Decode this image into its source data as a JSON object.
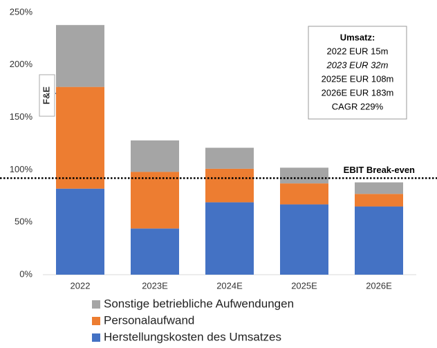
{
  "chart_data": {
    "type": "stacked_bar",
    "categories": [
      "2022",
      "2023E",
      "2024E",
      "2025E",
      "2026E"
    ],
    "series": [
      {
        "name": "Herstellungskosten des Umsatzes",
        "color": "#4472c4",
        "values": [
          82,
          44,
          69,
          67,
          65
        ]
      },
      {
        "name": "Personalaufwand",
        "color": "#ed7d31",
        "values": [
          97,
          54,
          32,
          20,
          12
        ]
      },
      {
        "name": "Sonstige betriebliche Aufwendungen",
        "color": "#a5a5a5",
        "values": [
          59,
          30,
          20,
          15,
          11
        ]
      }
    ],
    "ylim": [
      0,
      250
    ],
    "yticks": [
      {
        "value": 0,
        "label": "0%"
      },
      {
        "value": 50,
        "label": "50%"
      },
      {
        "value": 100,
        "label": "100%"
      },
      {
        "value": 150,
        "label": "150%"
      },
      {
        "value": 200,
        "label": "200%"
      },
      {
        "value": 250,
        "label": "250%"
      }
    ],
    "breakeven": {
      "value": 92,
      "label": "EBIT Break-even"
    },
    "bracket_label": "F&E",
    "info_box": {
      "title": "Umsatz:",
      "lines": [
        "2022 EUR 15m",
        "2023 EUR 32m",
        "2025E EUR 108m",
        "2026E EUR 183m",
        "CAGR 229%"
      ]
    },
    "legend": "bottom"
  }
}
